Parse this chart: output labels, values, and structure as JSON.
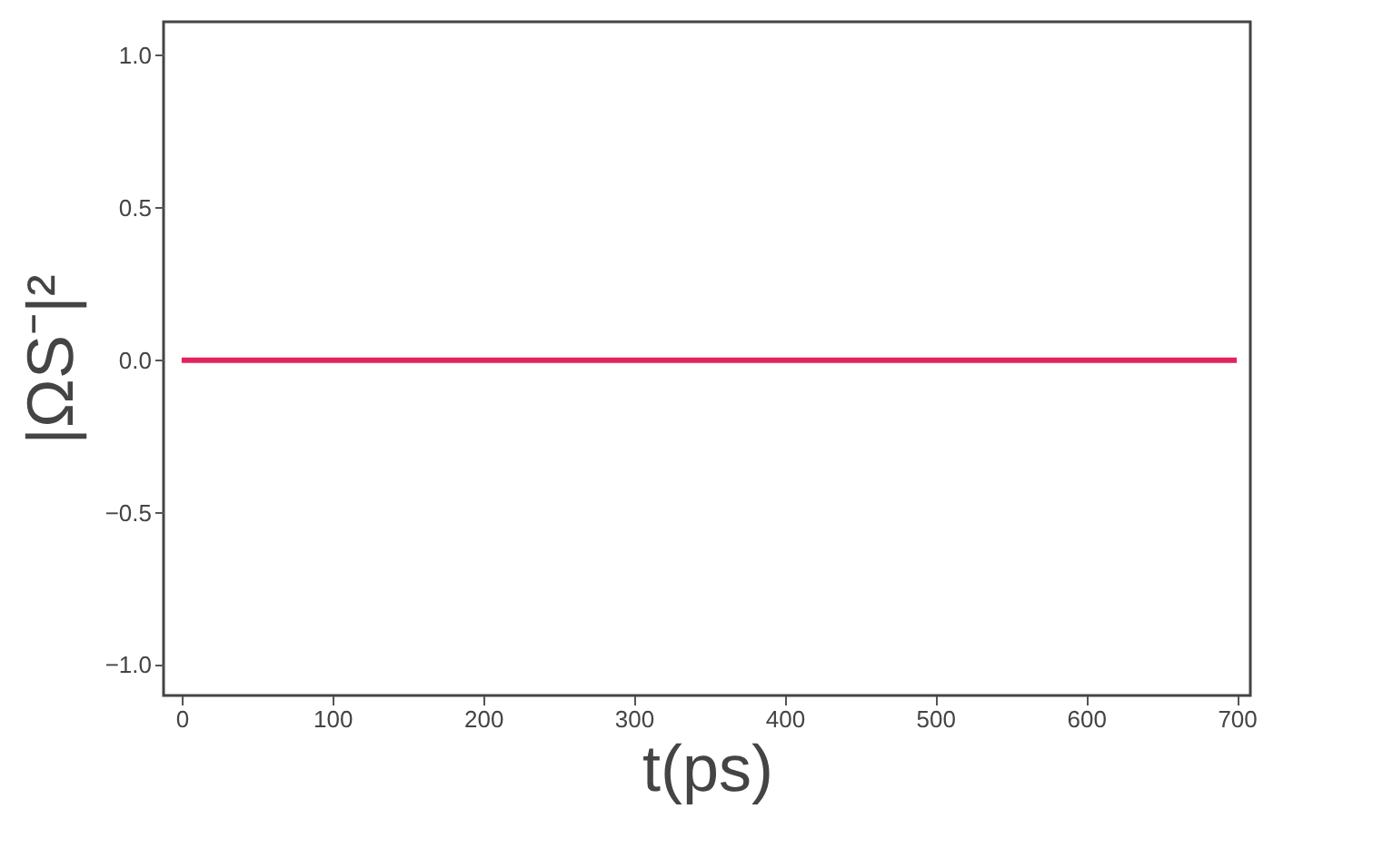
{
  "chart_data": {
    "type": "line",
    "xlabel": "t(ps)",
    "ylabel": "|ΩS⁻|²",
    "x": [
      0,
      700
    ],
    "series": [
      {
        "color": "#e0245e",
        "values": [
          0,
          0
        ]
      }
    ],
    "xlim": [
      -12,
      709
    ],
    "ylim": [
      -1.1,
      1.11
    ],
    "xticks": [
      0,
      100,
      200,
      300,
      400,
      500,
      600,
      700
    ],
    "yticks": [
      {
        "value": -1,
        "label": "−1.0"
      },
      {
        "value": -0.5,
        "label": "−0.5"
      },
      {
        "value": 0,
        "label": "0.0"
      },
      {
        "value": 0.5,
        "label": "0.5"
      },
      {
        "value": 1,
        "label": "1.0"
      }
    ],
    "grid": false,
    "marker": "none",
    "line_style": "solid"
  }
}
